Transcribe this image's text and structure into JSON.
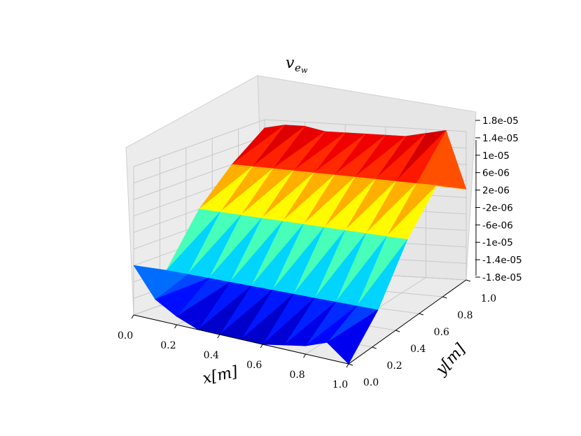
{
  "chart_data": {
    "type": "surface",
    "title": "v_{e_w}",
    "title_main": "v",
    "title_sub": "e",
    "title_subsub": "w",
    "xlabel": "x[m]",
    "ylabel": "y[m]",
    "xlim": [
      0.0,
      1.0
    ],
    "ylim": [
      0.0,
      1.0
    ],
    "zlim": [
      -1.8e-05,
      1.8e-05
    ],
    "x_ticks": [
      "0.0",
      "0.2",
      "0.4",
      "0.6",
      "0.8",
      "1.0"
    ],
    "y_ticks": [
      "0.0",
      "0.2",
      "0.4",
      "0.6",
      "0.8",
      "1.0"
    ],
    "z_ticks": [
      "1.8e-05",
      "1.4e-05",
      "1e-05",
      "6e-06",
      "2e-06",
      "-2e-06",
      "-6e-06",
      "-1e-05",
      "-1.4e-05",
      "-1.8e-05"
    ],
    "z_tick_values": [
      1.8e-05,
      1.4e-05,
      1e-05,
      6e-06,
      2e-06,
      -2e-06,
      -6e-06,
      -1e-05,
      -1.4e-05,
      -1.8e-05
    ],
    "grid": true,
    "colormap": "jet",
    "grid_x": [
      0.0,
      0.1,
      0.2,
      0.3,
      0.4,
      0.5,
      0.6,
      0.7,
      0.8,
      0.9,
      1.0
    ],
    "grid_y": [
      0.0,
      0.25,
      0.5,
      0.75,
      1.0
    ],
    "z_rows": [
      [
        -6e-06,
        -1.3e-05,
        -1.6e-05,
        -1.8e-05,
        -1.8e-05,
        -1.8e-05,
        -1.8e-05,
        -1.7e-05,
        -1.6e-05,
        -1.4e-05,
        -1.8e-05
      ],
      [
        -1e-05,
        -1e-05,
        -1e-05,
        -1e-05,
        -1e-05,
        -1e-05,
        -1e-05,
        -1e-05,
        -1e-05,
        -1e-05,
        -1e-05
      ],
      [
        2e-06,
        2e-06,
        2e-06,
        2e-06,
        2e-06,
        2e-06,
        2e-06,
        2e-06,
        2e-06,
        2e-06,
        2e-06
      ],
      [
        1e-05,
        1e-05,
        1e-05,
        1e-05,
        1e-05,
        1e-05,
        1e-05,
        1e-05,
        1e-05,
        1e-05,
        1e-05
      ],
      [
        1.6e-05,
        1.7e-05,
        1.7e-05,
        1.6e-05,
        1.6e-05,
        1.6e-05,
        1.6e-05,
        1.6e-05,
        1.7e-05,
        1.8e-05,
        4e-06
      ]
    ]
  }
}
